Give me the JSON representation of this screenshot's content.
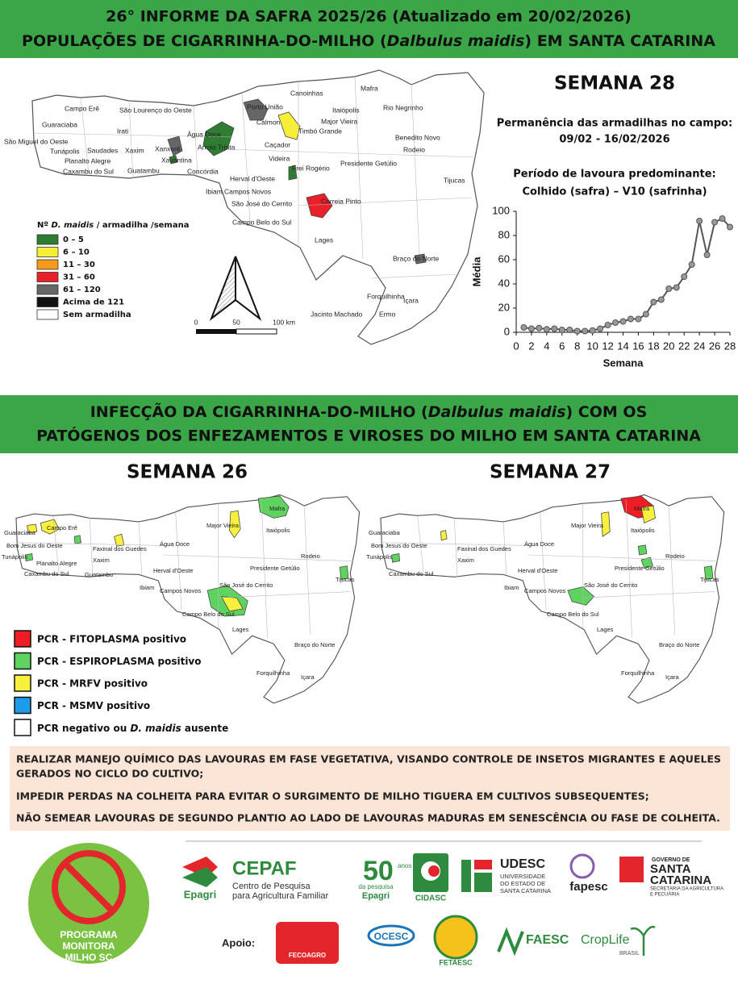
{
  "header": {
    "line1": "26° INFORME DA SAFRA 2025/26 (Atualizado em 20/02/2026)",
    "line2": [
      "POPULAÇÕES DE CIGARRINHA-DO-MILHO (",
      "Dalbulus maidis",
      ") EM SANTA CATARINA"
    ]
  },
  "map1": {
    "labels": [
      "Campo Erê",
      "São Lourenço do Oeste",
      "Guaraciaba",
      "Irati",
      "São Miguel do Oeste",
      "Tunápolis",
      "Saudades",
      "Xaxim",
      "Planalto Alegre",
      "Caxambu do Sul",
      "Guatambu",
      "Xanxerê",
      "Xavantina",
      "Água Doce",
      "Arroio Trinta",
      "Concórdia",
      "Herval d'Oeste",
      "Ibiam",
      "Campos Novos",
      "São José do Cerrito",
      "Campo Belo do Sul",
      "Lages",
      "Porto União",
      "Calmon",
      "Timbó Grande",
      "Caçador",
      "Videira",
      "Canoinhas",
      "Mafra",
      "Itaiópolis",
      "Major Vieira",
      "Rio Negrinho",
      "Benedito Novo",
      "Rodeio",
      "Presidente Getúlio",
      "Frei Rogério",
      "Correia Pinto",
      "Tijucas",
      "Braço do Norte",
      "Forquilhinha",
      "Jacinto Machado",
      "Ermo",
      "Içara"
    ],
    "legend": {
      "title": [
        "Nº ",
        "D. maidis",
        " / armadilha /semana"
      ],
      "items": [
        {
          "label": "0 – 5",
          "color": "#2e7d32"
        },
        {
          "label": "6 – 10",
          "color": "#f5ef3a"
        },
        {
          "label": "11 – 30",
          "color": "#f59a1b"
        },
        {
          "label": "31 – 60",
          "color": "#e8202a"
        },
        {
          "label": "61 – 120",
          "color": "#666666"
        },
        {
          "label": "Acima de 121",
          "color": "#111111"
        },
        {
          "label": "Sem armadilha",
          "color": "#ffffff"
        }
      ]
    },
    "scale": [
      "0",
      "50",
      "100 km"
    ]
  },
  "panel": {
    "week": "SEMANA 28",
    "trap_title": "Permanência das armadilhas no campo:",
    "trap_dates": "09/02 - 16/02/2026",
    "crop_title": "Período de lavoura predominante:",
    "crop_stage": "Colhido (safra) – V10 (safrinha)"
  },
  "chart_data": {
    "type": "line",
    "x": [
      1,
      2,
      3,
      4,
      5,
      6,
      7,
      8,
      9,
      10,
      11,
      12,
      13,
      14,
      15,
      16,
      17,
      18,
      19,
      20,
      21,
      22,
      23,
      24,
      25,
      26,
      27,
      28
    ],
    "values": [
      4,
      3,
      3.5,
      2.5,
      3,
      2,
      2,
      1,
      1,
      1.5,
      3,
      6,
      8,
      9,
      11,
      11,
      15,
      25,
      27,
      36,
      37,
      46,
      56,
      92,
      64,
      91,
      94,
      87
    ],
    "color": "#555555",
    "xlabel": "Semana",
    "ylabel": "Média",
    "xlim": [
      0,
      28
    ],
    "xticks": [
      0,
      2,
      4,
      6,
      8,
      10,
      12,
      14,
      16,
      18,
      20,
      22,
      24,
      26,
      28
    ],
    "ylim": [
      0,
      100
    ],
    "yticks": [
      0,
      20,
      40,
      60,
      80,
      100
    ]
  },
  "section2": {
    "title": [
      [
        "INFECÇÃO DA CIGARRINHA-DO-MILHO (",
        "Dalbulus maidis",
        ") COM OS"
      ],
      [
        "PATÓGENOS DOS ENFEZAMENTOS E VIROSES DO MILHO EM SANTA CATARINA"
      ]
    ],
    "maps": [
      {
        "title": "SEMANA 26",
        "labels": [
          "Guaraciaba",
          "Campo Erê",
          "Bom Jesus do Oeste",
          "Tunápolis",
          "Planalto Alegre",
          "Caxambu do Sul",
          "Faxinal dos Guedes",
          "Xaxim",
          "Guatambu",
          "Água Doce",
          "Herval d'Oeste",
          "Ibiam",
          "Campos Novos",
          "São José do Cerrito",
          "Campo Belo do Sul",
          "Lages",
          "Major Vieira",
          "Mafra",
          "Itaiópolis",
          "Rodeio",
          "Presidente Getúlio",
          "Tijucas",
          "Braço do Norte",
          "Forquilhinha",
          "Içara"
        ]
      },
      {
        "title": "SEMANA 27",
        "labels": [
          "Guaraciaba",
          "Bom Jesus do Oeste",
          "Tunápolis",
          "Caxambu do Sul",
          "Faxinal dos Guedes",
          "Xaxim",
          "Água Doce",
          "Herval d'Oeste",
          "Ibiam",
          "Campos Novos",
          "São José do Cerrito",
          "Campo Belo do Sul",
          "Lages",
          "Major Vieira",
          "Mafra",
          "Itaiópolis",
          "Rodeio",
          "Presidente Getúlio",
          "Tijucas",
          "Braço do Norte",
          "Forquilhinha",
          "Içara"
        ]
      }
    ],
    "legend": [
      {
        "label": "PCR - FITOPLASMA positivo",
        "color": "#ee1c24"
      },
      {
        "label": "PCR - ESPIROPLASMA positivo",
        "color": "#5fd35f"
      },
      {
        "label": "PCR - MRFV positivo",
        "color": "#f7f03c"
      },
      {
        "label": "PCR - MSMV positivo",
        "color": "#1c9ce8"
      },
      {
        "label": [
          "PCR negativo ou ",
          "D. maidis",
          " ausente"
        ],
        "color": "#ffffff"
      }
    ]
  },
  "recommendations": [
    "REALIZAR MANEJO QUÍMICO DAS LAVOURAS EM FASE VEGETATIVA, VISANDO CONTROLE DE INSETOS MIGRANTES E AQUELES",
    "GERADOS NO CICLO DO CULTIVO;",
    "IMPEDIR PERDAS NA COLHEITA PARA EVITAR O SURGIMENTO DE MILHO TIGUERA EM CULTIVOS SUBSEQUENTES;",
    "NÃO SEMEAR LAVOURAS DE SEGUNDO PLANTIO AO LADO DE LAVOURAS MADURAS EM SENESCÊNCIA OU FASE DE COLHEITA."
  ],
  "footer": {
    "program": [
      "PROGRAMA",
      "MONITORA",
      "MILHO SC"
    ],
    "epagri": "Epagri",
    "cepaf": "CEPAF",
    "cepaf_sub": [
      "Centro de Pesquisa",
      "para Agricultura Familiar"
    ],
    "fifty": "50",
    "fifty_sub": [
      "anos",
      "da pesquisa",
      "Epagri"
    ],
    "cidasc": "CIDASC",
    "udesc": "UDESC",
    "udesc_sub": [
      "UNIVERSIDADE",
      "DO ESTADO DE",
      "SANTA CATARINA"
    ],
    "fapesc": "fapesc",
    "gov": [
      "GOVERNO DE",
      "SANTA",
      "CATARINA"
    ],
    "gov_sub": [
      "SECRETARIA DA AGRICULTURA",
      "E PECUÁRIA"
    ],
    "apoio": "Apoio:",
    "fecoagro": "FECOAGRO",
    "ocesc": "OCESC",
    "fetaesc": "FETAESC",
    "faesc": "FAESC",
    "croplife": "CropLife",
    "brasil": "BRASIL"
  }
}
